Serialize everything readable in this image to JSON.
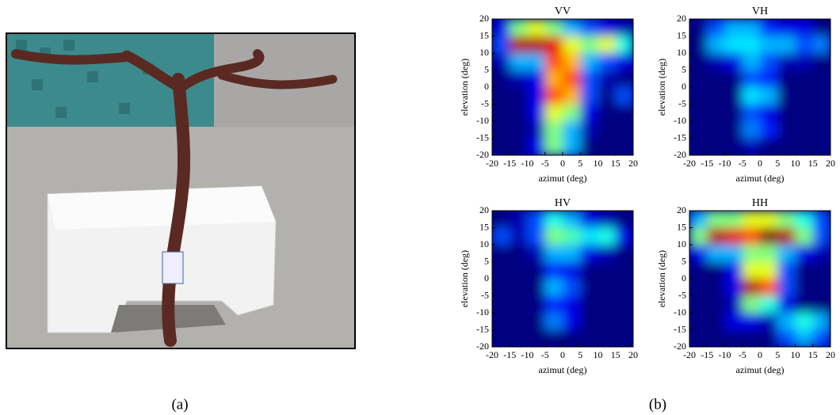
{
  "photo_caption": "(a)",
  "charts_caption": "(b)",
  "chart_data": [
    {
      "type": "heatmap",
      "title": "VV",
      "x_label": "azimut  (deg)",
      "y_label": "elevation (deg)",
      "xlim": [
        -20,
        20
      ],
      "ylim": [
        -20,
        20
      ],
      "xticks": [
        -20,
        -15,
        -10,
        -5,
        0,
        5,
        10,
        15,
        20
      ],
      "yticks": [
        -20,
        -15,
        -10,
        -5,
        0,
        5,
        10,
        15,
        20
      ],
      "values": [
        [
          0.1,
          0.5,
          0.6,
          0.5,
          0.3,
          0.2,
          0.1,
          0.05
        ],
        [
          0.2,
          0.95,
          0.95,
          0.9,
          0.6,
          0.5,
          0.6,
          0.4
        ],
        [
          0.05,
          0.3,
          0.3,
          0.8,
          0.7,
          0.3,
          0.2,
          0.1
        ],
        [
          0,
          0.05,
          0.1,
          0.7,
          0.8,
          0.2,
          0.05,
          0
        ],
        [
          0,
          0,
          0.1,
          0.8,
          0.7,
          0.2,
          0,
          0.2
        ],
        [
          0,
          0,
          0.1,
          0.6,
          0.5,
          0.1,
          0,
          0
        ],
        [
          0,
          0,
          0.05,
          0.5,
          0.3,
          0.05,
          0,
          0
        ],
        [
          0,
          0,
          0.1,
          0.5,
          0.3,
          0,
          0,
          0
        ]
      ]
    },
    {
      "type": "heatmap",
      "title": "VH",
      "x_label": "azimut  (deg)",
      "y_label": "elevation (deg)",
      "xlim": [
        -20,
        20
      ],
      "ylim": [
        -20,
        20
      ],
      "xticks": [
        -20,
        -15,
        -10,
        -5,
        0,
        5,
        10,
        15,
        20
      ],
      "yticks": [
        -20,
        -15,
        -10,
        -5,
        0,
        5,
        10,
        15,
        20
      ],
      "values": [
        [
          0,
          0.2,
          0.3,
          0.3,
          0.15,
          0.1,
          0.1,
          0
        ],
        [
          0,
          0.3,
          0.35,
          0.35,
          0.3,
          0.3,
          0.2,
          0.25
        ],
        [
          0,
          0.05,
          0.1,
          0.3,
          0.2,
          0.05,
          0.05,
          0
        ],
        [
          0,
          0,
          0,
          0.2,
          0.15,
          0,
          0,
          0
        ],
        [
          0,
          0,
          0,
          0.35,
          0.3,
          0,
          0,
          0
        ],
        [
          0,
          0,
          0,
          0.2,
          0.1,
          0,
          0,
          0
        ],
        [
          0,
          0,
          0,
          0.25,
          0.15,
          0,
          0,
          0
        ],
        [
          0,
          0,
          0,
          0.05,
          0,
          0,
          0,
          0
        ]
      ]
    },
    {
      "type": "heatmap",
      "title": "HV",
      "x_label": "azimut  (deg)",
      "y_label": "elevation (deg)",
      "xlim": [
        -20,
        20
      ],
      "ylim": [
        -20,
        20
      ],
      "xticks": [
        -20,
        -15,
        -10,
        -5,
        0,
        5,
        10,
        15,
        20
      ],
      "yticks": [
        -20,
        -15,
        -10,
        -5,
        0,
        5,
        10,
        15,
        20
      ],
      "values": [
        [
          0,
          0.05,
          0.2,
          0.4,
          0.3,
          0.1,
          0.05,
          0
        ],
        [
          0.2,
          0.05,
          0.2,
          0.5,
          0.45,
          0.35,
          0.4,
          0.1
        ],
        [
          0,
          0,
          0.05,
          0.3,
          0.3,
          0.1,
          0.05,
          0
        ],
        [
          0,
          0,
          0,
          0.15,
          0.1,
          0,
          0,
          0
        ],
        [
          0,
          0,
          0,
          0.3,
          0.2,
          0,
          0,
          0
        ],
        [
          0,
          0,
          0,
          0.15,
          0.1,
          0,
          0,
          0
        ],
        [
          0,
          0,
          0,
          0.25,
          0.1,
          0,
          0,
          0
        ],
        [
          0,
          0,
          0,
          0,
          0,
          0,
          0,
          0
        ]
      ]
    },
    {
      "type": "heatmap",
      "title": "HH",
      "x_label": "azimut  (deg)",
      "y_label": "elevation (deg)",
      "xlim": [
        -20,
        20
      ],
      "ylim": [
        -20,
        20
      ],
      "xticks": [
        -20,
        -15,
        -10,
        -5,
        0,
        5,
        10,
        15,
        20
      ],
      "yticks": [
        -20,
        -15,
        -10,
        -5,
        0,
        5,
        10,
        15,
        20
      ],
      "values": [
        [
          0.3,
          0.5,
          0.5,
          0.6,
          0.6,
          0.5,
          0.4,
          0.2
        ],
        [
          0.5,
          0.95,
          0.9,
          0.8,
          1.0,
          0.95,
          0.5,
          0.2
        ],
        [
          0.1,
          0.3,
          0.3,
          0.5,
          0.5,
          0.3,
          0.1,
          0.05
        ],
        [
          0,
          0,
          0.1,
          0.6,
          0.6,
          0.2,
          0,
          0
        ],
        [
          0,
          0,
          0.1,
          0.95,
          0.8,
          0.2,
          0,
          0
        ],
        [
          0,
          0,
          0.05,
          0.5,
          0.4,
          0.1,
          0,
          0
        ],
        [
          0,
          0,
          0.1,
          0.1,
          0.05,
          0.3,
          0.4,
          0.3
        ],
        [
          0,
          0,
          0,
          0,
          0,
          0.2,
          0.3,
          0.2
        ]
      ]
    }
  ]
}
